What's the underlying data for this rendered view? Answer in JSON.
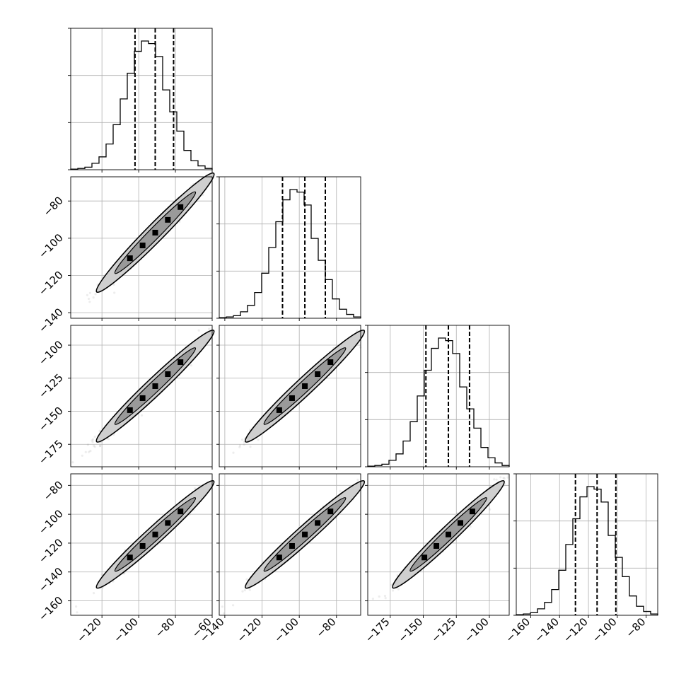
{
  "chart_data": {
    "type": "corner",
    "n_params": 4,
    "params": [
      {
        "range": [
          -137,
          -60
        ],
        "ticks": [
          -120,
          -100,
          -80,
          -60
        ],
        "tick_labels": [
          "−120",
          "−100",
          "−80",
          "−60"
        ],
        "mean": -91,
        "std": 12.5
      },
      {
        "range": [
          -143,
          -67
        ],
        "ticks": [
          -140,
          -120,
          -100,
          -80
        ],
        "tick_labels": [
          "−140",
          "−120",
          "−100",
          "−80"
        ],
        "mean": -97,
        "std": 12.5
      },
      {
        "range": [
          -192,
          -85
        ],
        "ticks": [
          -175,
          -150,
          -125,
          -100
        ],
        "tick_labels": [
          "−175",
          "−150",
          "−125",
          "−100"
        ],
        "mean": -131,
        "std": 16.5
      },
      {
        "range": [
          -170,
          -72
        ],
        "ticks": [
          -160,
          -140,
          -120,
          -100,
          -80
        ],
        "tick_labels": [
          "−160",
          "−140",
          "−120",
          "−100",
          "−80"
        ],
        "mean": -114,
        "std": 14.5
      }
    ],
    "quantiles": [
      [
        -102,
        -91,
        -81
      ],
      [
        -109,
        -97,
        -86
      ],
      [
        -148,
        -131,
        -115
      ],
      [
        -129,
        -114,
        -101
      ]
    ],
    "histograms": [
      [
        0.005,
        0.01,
        0.02,
        0.05,
        0.1,
        0.2,
        0.35,
        0.55,
        0.75,
        0.92,
        1.0,
        0.98,
        0.88,
        0.62,
        0.45,
        0.3,
        0.15,
        0.07,
        0.03,
        0.01
      ],
      [
        0.005,
        0.01,
        0.02,
        0.05,
        0.1,
        0.2,
        0.35,
        0.55,
        0.75,
        0.92,
        1.0,
        0.98,
        0.88,
        0.62,
        0.45,
        0.3,
        0.15,
        0.07,
        0.03,
        0.01
      ],
      [
        0.005,
        0.01,
        0.02,
        0.05,
        0.1,
        0.2,
        0.35,
        0.55,
        0.75,
        0.92,
        1.0,
        0.98,
        0.88,
        0.62,
        0.45,
        0.3,
        0.15,
        0.07,
        0.03,
        0.01
      ],
      [
        0.005,
        0.01,
        0.02,
        0.05,
        0.1,
        0.2,
        0.35,
        0.55,
        0.75,
        0.92,
        1.0,
        0.98,
        0.88,
        0.62,
        0.45,
        0.3,
        0.15,
        0.07,
        0.03,
        0.01
      ]
    ],
    "correlation": 0.985,
    "grid": true,
    "title": "",
    "xlabel": "",
    "ylabel": ""
  },
  "colors": {
    "line": "#000000",
    "grid": "#b0b0b0",
    "outer_contour": "#cfcfcf",
    "inner_contour": "#9a9a9a",
    "core": "#000000"
  }
}
